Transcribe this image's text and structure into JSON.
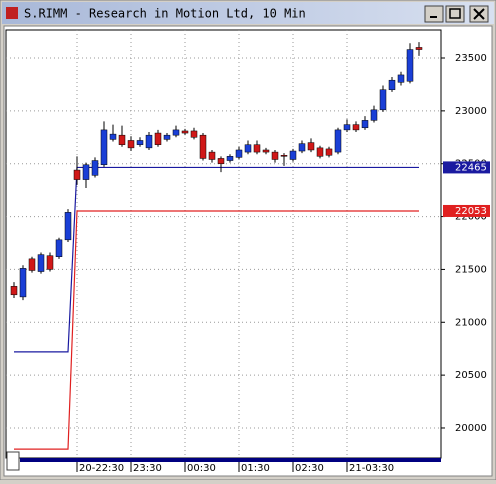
{
  "chart_data": {
    "type": "candlestick",
    "title": "S.RIMM - Research in Motion Ltd, 10 Min",
    "categories": [
      null,
      null,
      null,
      null,
      null,
      null,
      null,
      "20-22:30",
      null,
      null,
      null,
      null,
      null,
      "23:30",
      null,
      null,
      null,
      null,
      null,
      "00:30",
      null,
      null,
      null,
      null,
      null,
      "01:30",
      null,
      null,
      null,
      null,
      null,
      "02:30",
      null,
      null,
      null,
      null,
      null,
      "21-03:30",
      null,
      null,
      null,
      null,
      null,
      null,
      null,
      null
    ],
    "open": [
      21340,
      21240,
      21600,
      21480,
      21630,
      21620,
      21780,
      22440,
      22350,
      22390,
      22490,
      22730,
      22770,
      22720,
      22680,
      22650,
      22790,
      22730,
      22770,
      22810,
      22810,
      22770,
      22610,
      22550,
      22530,
      22560,
      22610,
      22680,
      22630,
      22610,
      22580,
      22540,
      22620,
      22700,
      22650,
      22640,
      22610,
      22820,
      22870,
      22840,
      22910,
      23010,
      23200,
      23270,
      23280,
      23600
    ],
    "high": [
      21380,
      21540,
      21620,
      21660,
      21660,
      21800,
      22070,
      22570,
      22510,
      22560,
      22900,
      22870,
      22860,
      22760,
      22750,
      22800,
      22820,
      22790,
      22860,
      22830,
      22840,
      22790,
      22630,
      22570,
      22590,
      22660,
      22720,
      22720,
      22650,
      22630,
      22600,
      22640,
      22720,
      22740,
      22670,
      22660,
      22840,
      22920,
      22900,
      22950,
      23050,
      23240,
      23320,
      23370,
      23640,
      23650
    ],
    "low": [
      21230,
      21210,
      21470,
      21460,
      21480,
      21600,
      21760,
      22300,
      22270,
      22370,
      22470,
      22710,
      22660,
      22620,
      22660,
      22630,
      22660,
      22710,
      22750,
      22770,
      22730,
      22530,
      22510,
      22420,
      22510,
      22540,
      22590,
      22590,
      22590,
      22510,
      22480,
      22520,
      22600,
      22610,
      22550,
      22560,
      22590,
      22800,
      22800,
      22820,
      22890,
      22990,
      23180,
      23240,
      23260,
      23520
    ],
    "close": [
      21260,
      21510,
      21490,
      21640,
      21500,
      21780,
      22040,
      22350,
      22490,
      22530,
      22820,
      22780,
      22680,
      22650,
      22720,
      22770,
      22680,
      22770,
      22820,
      22790,
      22750,
      22550,
      22540,
      22500,
      22570,
      22630,
      22680,
      22610,
      22610,
      22540,
      22570,
      22620,
      22690,
      22630,
      22570,
      22580,
      22820,
      22870,
      22820,
      22910,
      23010,
      23200,
      23290,
      23340,
      23580,
      23580
    ],
    "up_color": "#1a3fd6",
    "down_color": "#d01818",
    "lines": [
      {
        "color": "#1a1aa0",
        "values": [
          20720,
          20720,
          20720,
          20720,
          20720,
          20720,
          20720,
          22465,
          22465,
          22465,
          22465,
          22465,
          22465,
          22465,
          22465,
          22465,
          22465,
          22465,
          22465,
          22465,
          22465,
          22465,
          22465,
          22465,
          22465,
          22465,
          22465,
          22465,
          22465,
          22465,
          22465,
          22465,
          22465,
          22465,
          22465,
          22465,
          22465,
          22465,
          22465,
          22465,
          22465,
          22465,
          22465,
          22465,
          22465,
          22465
        ]
      },
      {
        "color": "#e02020",
        "values": [
          19800,
          19800,
          19800,
          19800,
          19800,
          19800,
          19800,
          22053,
          22053,
          22053,
          22053,
          22053,
          22053,
          22053,
          22053,
          22053,
          22053,
          22053,
          22053,
          22053,
          22053,
          22053,
          22053,
          22053,
          22053,
          22053,
          22053,
          22053,
          22053,
          22053,
          22053,
          22053,
          22053,
          22053,
          22053,
          22053,
          22053,
          22053,
          22053,
          22053,
          22053,
          22053,
          22053,
          22053,
          22053,
          22053
        ]
      }
    ],
    "ylim": [
      19716,
      23765
    ],
    "yticks": [
      20000,
      20500,
      21000,
      21500,
      22000,
      22500,
      23000,
      23500
    ],
    "grid": true
  }
}
